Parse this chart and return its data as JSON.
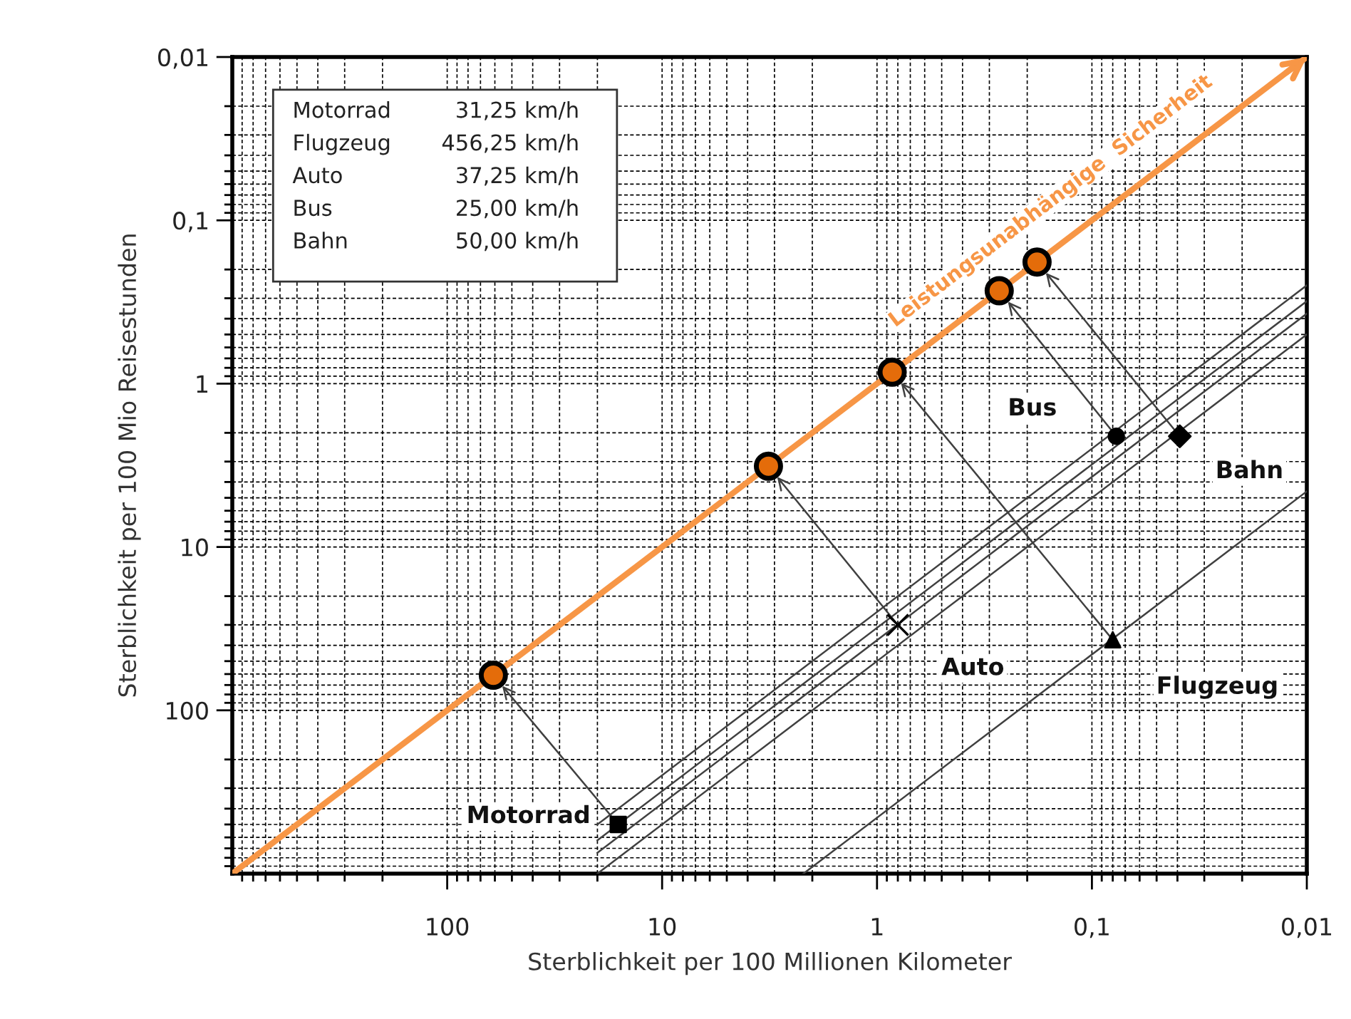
{
  "chart_data": {
    "type": "scatter",
    "xlabel": "Sterblichkeit per 100 Millionen Kilometer",
    "ylabel": "Sterblichkeit per 100 Mio Reisestunden",
    "log": "xy",
    "xlim": [
      1000,
      0.01
    ],
    "ylim": [
      1000,
      0.01
    ],
    "xticks": [
      100,
      10,
      1,
      {
        "value": 0.1,
        "label": "0,1"
      },
      {
        "value": 0.01,
        "label": "0,01"
      }
    ],
    "yticks": [
      {
        "value": 0.01,
        "label": "0,01"
      },
      {
        "value": 0.1,
        "label": "0,1"
      },
      1,
      10,
      100
    ],
    "grid": true,
    "series": [
      {
        "type": "line",
        "x": [
          20,
          0.01
        ],
        "values": [
          625,
          0.3125
        ],
        "color": "#404040"
      },
      {
        "type": "line",
        "x": [
          2.2,
          0.01
        ],
        "values": [
          1000,
          4.5625
        ],
        "color": "#404040"
      },
      {
        "type": "line",
        "x": [
          20,
          0.01
        ],
        "values": [
          745,
          0.3725
        ],
        "color": "#404040"
      },
      {
        "type": "line",
        "x": [
          20,
          0.01
        ],
        "values": [
          500,
          0.25
        ],
        "color": "#404040"
      },
      {
        "type": "line",
        "x": [
          20,
          0.01
        ],
        "values": [
          1000,
          0.5
        ],
        "color": "#404040"
      },
      {
        "type": "line",
        "x": [
          1000,
          0.01
        ],
        "values": [
          1000,
          0.01
        ],
        "color": "#f79646"
      },
      {
        "x": [
          16
        ],
        "values": [
          500
        ],
        "color": "#000000",
        "marker": "square"
      },
      {
        "x": [
          0.8
        ],
        "values": [
          30
        ],
        "color": "#000000",
        "marker": "cross"
      },
      {
        "x": [
          0.08
        ],
        "values": [
          37
        ],
        "color": "#000000",
        "marker": "triangle"
      },
      {
        "x": [
          0.077
        ],
        "values": [
          2.1
        ],
        "color": "#000000",
        "marker": "circle"
      },
      {
        "x": [
          0.039
        ],
        "values": [
          2.1
        ],
        "color": "#000000",
        "marker": "diamond"
      },
      {
        "x": [
          61,
          3.2,
          0.85,
          0.27,
          0.18
        ],
        "values": [
          61,
          3.2,
          0.85,
          0.27,
          0.18
        ],
        "color": "#e46c0a",
        "marker": "circle"
      }
    ],
    "annotations": [
      "Motorrad 31,25 km/h",
      "Flugzeug 456,25 km/h",
      "Auto 37,25 km/h",
      "Bus 25,00 km/h",
      "Bahn 50,00 km/h",
      {
        "text": "Motorrad",
        "x": 16,
        "y": 500
      },
      {
        "text": "Auto",
        "x": 0.8,
        "y": 30
      },
      {
        "text": "Flugzeug",
        "x": 0.08,
        "y": 37
      },
      {
        "text": "Bus",
        "x": 0.077,
        "y": 2.1
      },
      {
        "text": "Bahn",
        "x": 0.039,
        "y": 2.1
      },
      {
        "text": "Leistungsunabhängige  Sicherheit",
        "x": 0.12,
        "y": 0.12
      }
    ]
  }
}
